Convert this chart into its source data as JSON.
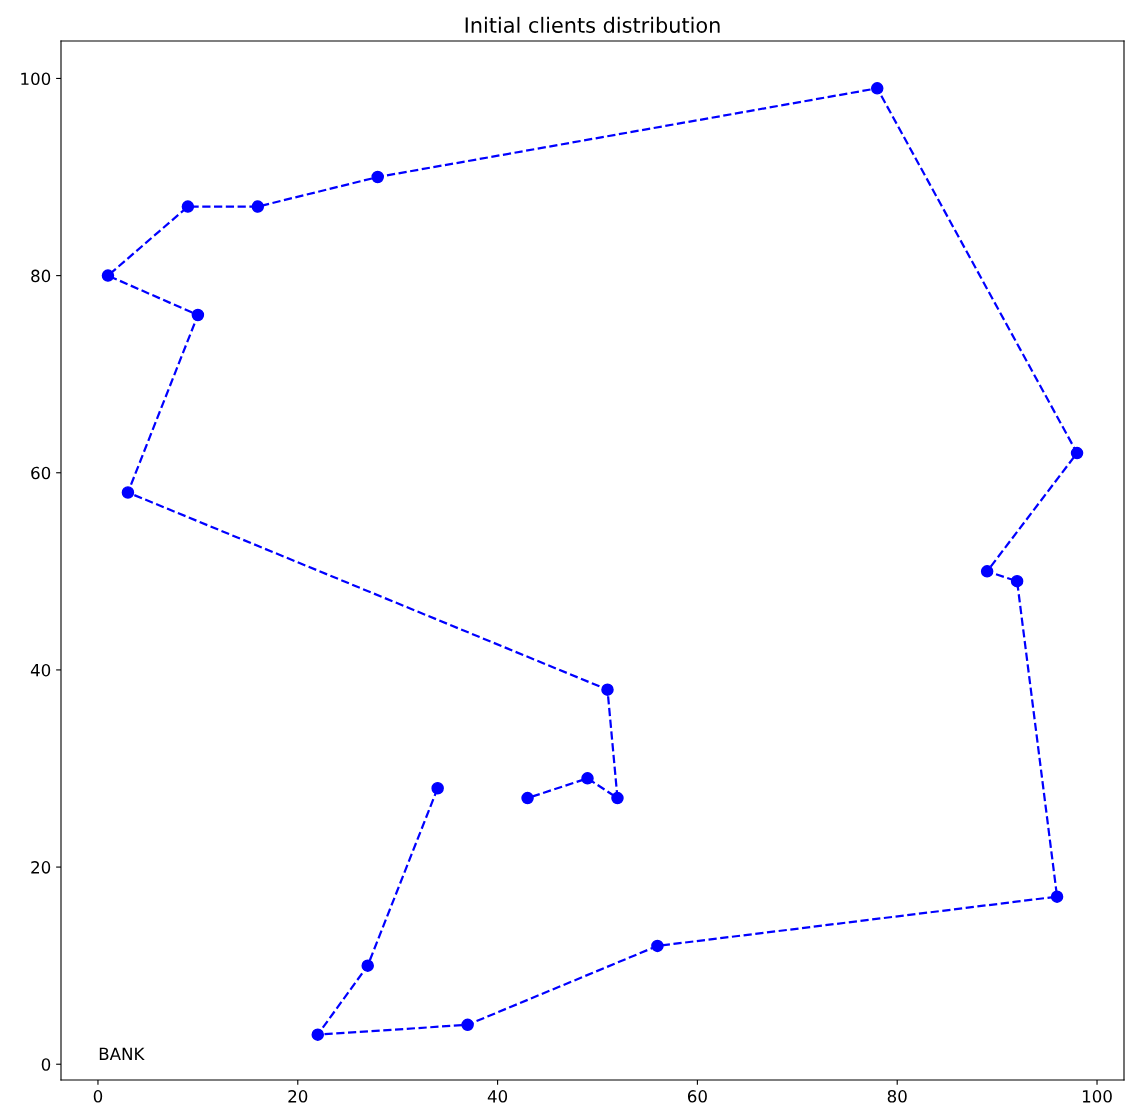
{
  "chart_data": {
    "type": "line",
    "title": "Initial clients distribution",
    "series": [
      {
        "color": "#0000ff",
        "x": [
          34,
          27,
          22,
          37,
          56,
          96,
          92,
          89,
          98,
          78,
          28,
          16,
          9,
          1,
          10,
          3,
          51,
          52,
          49,
          43
        ],
        "values": [
          28,
          10,
          3,
          4,
          12,
          17,
          49,
          50,
          62,
          99,
          90,
          87,
          87,
          80,
          76,
          58,
          38,
          27,
          29,
          27
        ]
      }
    ],
    "marker": "circle",
    "line_style": "dashed",
    "xlim": [
      -3.7,
      102.7
    ],
    "ylim": [
      -1.6,
      103.8
    ],
    "xticks": [
      0,
      20,
      40,
      60,
      80,
      100
    ],
    "yticks": [
      0,
      20,
      40,
      60,
      80,
      100
    ],
    "annotations": [
      "BANK"
    ],
    "grid": false
  }
}
